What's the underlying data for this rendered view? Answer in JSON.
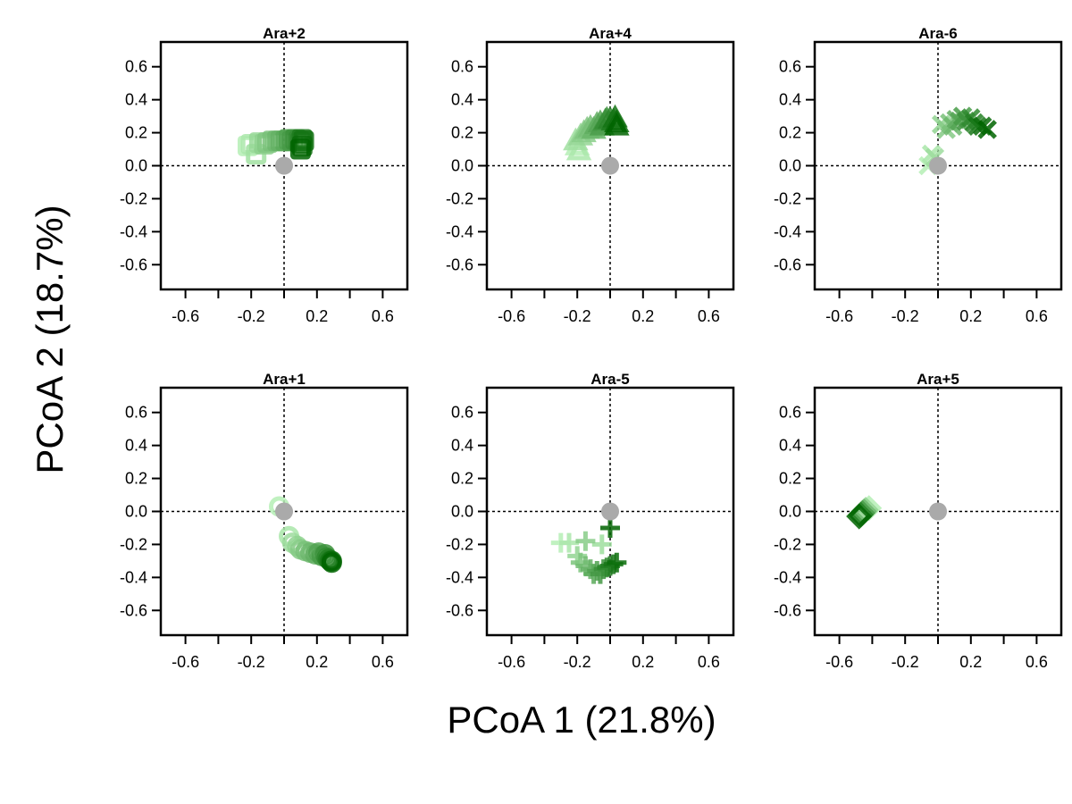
{
  "figure": {
    "xlabel": "PCoA 1 (21.8%)",
    "ylabel": "PCoA 2 (18.7%)",
    "origin_color": "#aaaaaa",
    "color_light": "#b5efb5",
    "color_dark": "#006400"
  },
  "chart_data": [
    {
      "type": "scatter",
      "title": "Ara+2",
      "marker": "square",
      "xlim": [
        -0.75,
        0.75
      ],
      "ylim": [
        -0.75,
        0.75
      ],
      "xticks": [
        -0.6,
        -0.4,
        -0.2,
        0,
        0.2,
        0.4,
        0.6
      ],
      "xtick_labels": [
        "-0.6",
        "-0.2",
        "0.2",
        "0.6"
      ],
      "yticks": [
        -0.6,
        -0.4,
        -0.2,
        0.0,
        0.2,
        0.4,
        0.6
      ],
      "ytick_labels": [
        "-0.6",
        "-0.4",
        "-0.2",
        "0.0",
        "0.2",
        "0.4",
        "0.6"
      ],
      "reference_lines": {
        "x": 0,
        "y": 0
      },
      "origin_point": [
        0,
        0
      ],
      "points": [
        [
          -0.22,
          0.12
        ],
        [
          -0.2,
          0.13
        ],
        [
          -0.17,
          0.07
        ],
        [
          -0.15,
          0.14
        ],
        [
          -0.12,
          0.13
        ],
        [
          -0.1,
          0.14
        ],
        [
          -0.07,
          0.15
        ],
        [
          -0.04,
          0.15
        ],
        [
          -0.02,
          0.15
        ],
        [
          0.01,
          0.15
        ],
        [
          0.03,
          0.16
        ],
        [
          0.05,
          0.15
        ],
        [
          0.07,
          0.16
        ],
        [
          0.09,
          0.15
        ],
        [
          0.1,
          0.14
        ],
        [
          0.11,
          0.16
        ],
        [
          0.12,
          0.15
        ],
        [
          0.11,
          0.12
        ],
        [
          0.1,
          0.1
        ]
      ]
    },
    {
      "type": "scatter",
      "title": "Ara+4",
      "marker": "triangle",
      "xlim": [
        -0.75,
        0.75
      ],
      "ylim": [
        -0.75,
        0.75
      ],
      "xticks": [
        -0.6,
        -0.4,
        -0.2,
        0,
        0.2,
        0.4,
        0.6
      ],
      "xtick_labels": [
        "-0.6",
        "-0.2",
        "0.2",
        "0.6"
      ],
      "yticks": [
        -0.6,
        -0.4,
        -0.2,
        0.0,
        0.2,
        0.4,
        0.6
      ],
      "ytick_labels": [
        "-0.6",
        "-0.4",
        "-0.2",
        "0.0",
        "0.2",
        "0.4",
        "0.6"
      ],
      "reference_lines": {
        "x": 0,
        "y": 0
      },
      "origin_point": [
        0,
        0
      ],
      "points": [
        [
          -0.2,
          0.12
        ],
        [
          -0.19,
          0.09
        ],
        [
          -0.21,
          0.15
        ],
        [
          -0.18,
          0.18
        ],
        [
          -0.16,
          0.2
        ],
        [
          -0.14,
          0.22
        ],
        [
          -0.12,
          0.23
        ],
        [
          -0.1,
          0.22
        ],
        [
          -0.08,
          0.25
        ],
        [
          -0.06,
          0.26
        ],
        [
          -0.05,
          0.24
        ],
        [
          -0.03,
          0.27
        ],
        [
          -0.02,
          0.28
        ],
        [
          0.0,
          0.28
        ],
        [
          0.02,
          0.27
        ],
        [
          0.03,
          0.29
        ],
        [
          0.04,
          0.26
        ],
        [
          0.04,
          0.24
        ]
      ]
    },
    {
      "type": "scatter",
      "title": "Ara-6",
      "marker": "x",
      "xlim": [
        -0.75,
        0.75
      ],
      "ylim": [
        -0.75,
        0.75
      ],
      "xticks": [
        -0.6,
        -0.4,
        -0.2,
        0,
        0.2,
        0.4,
        0.6
      ],
      "xtick_labels": [
        "-0.6",
        "-0.2",
        "0.2",
        "0.6"
      ],
      "yticks": [
        -0.6,
        -0.4,
        -0.2,
        0.0,
        0.2,
        0.4,
        0.6
      ],
      "ytick_labels": [
        "-0.6",
        "-0.4",
        "-0.2",
        "0.0",
        "0.2",
        "0.4",
        "0.6"
      ],
      "reference_lines": {
        "x": 0,
        "y": 0
      },
      "origin_point": [
        0,
        0
      ],
      "points": [
        [
          -0.06,
          0.0
        ],
        [
          -0.04,
          0.07
        ],
        [
          -0.02,
          0.05
        ],
        [
          0.02,
          0.25
        ],
        [
          0.05,
          0.22
        ],
        [
          0.07,
          0.26
        ],
        [
          0.09,
          0.24
        ],
        [
          0.11,
          0.28
        ],
        [
          0.13,
          0.27
        ],
        [
          0.15,
          0.3
        ],
        [
          0.17,
          0.27
        ],
        [
          0.2,
          0.29
        ],
        [
          0.22,
          0.26
        ],
        [
          0.24,
          0.24
        ],
        [
          0.27,
          0.24
        ],
        [
          0.3,
          0.22
        ]
      ]
    },
    {
      "type": "scatter",
      "title": "Ara+1",
      "marker": "circle",
      "xlim": [
        -0.75,
        0.75
      ],
      "ylim": [
        -0.75,
        0.75
      ],
      "xticks": [
        -0.6,
        -0.4,
        -0.2,
        0,
        0.2,
        0.4,
        0.6
      ],
      "xtick_labels": [
        "-0.6",
        "-0.2",
        "0.2",
        "0.6"
      ],
      "yticks": [
        -0.6,
        -0.4,
        -0.2,
        0.0,
        0.2,
        0.4,
        0.6
      ],
      "ytick_labels": [
        "-0.6",
        "-0.4",
        "-0.2",
        "0.0",
        "0.2",
        "0.4",
        "0.6"
      ],
      "reference_lines": {
        "x": 0,
        "y": 0
      },
      "origin_point": [
        0,
        0
      ],
      "points": [
        [
          -0.03,
          0.03
        ],
        [
          0.03,
          -0.15
        ],
        [
          0.05,
          -0.19
        ],
        [
          0.08,
          -0.21
        ],
        [
          0.1,
          -0.23
        ],
        [
          0.13,
          -0.24
        ],
        [
          0.16,
          -0.25
        ],
        [
          0.19,
          -0.26
        ],
        [
          0.21,
          -0.25
        ],
        [
          0.23,
          -0.27
        ],
        [
          0.25,
          -0.26
        ],
        [
          0.26,
          -0.28
        ],
        [
          0.27,
          -0.29
        ],
        [
          0.28,
          -0.3
        ],
        [
          0.29,
          -0.3
        ],
        [
          0.29,
          -0.31
        ]
      ]
    },
    {
      "type": "scatter",
      "title": "Ara-5",
      "marker": "plus",
      "xlim": [
        -0.75,
        0.75
      ],
      "ylim": [
        -0.75,
        0.75
      ],
      "xticks": [
        -0.6,
        -0.4,
        -0.2,
        0,
        0.2,
        0.4,
        0.6
      ],
      "xtick_labels": [
        "-0.6",
        "-0.2",
        "0.2",
        "0.6"
      ],
      "yticks": [
        -0.6,
        -0.4,
        -0.2,
        0.0,
        0.2,
        0.4,
        0.6
      ],
      "ytick_labels": [
        "-0.6",
        "-0.4",
        "-0.2",
        "0.0",
        "0.2",
        "0.4",
        "0.6"
      ],
      "reference_lines": {
        "x": 0,
        "y": 0
      },
      "origin_point": [
        0,
        0
      ],
      "points": [
        [
          -0.3,
          -0.19
        ],
        [
          -0.25,
          -0.19
        ],
        [
          -0.05,
          -0.2
        ],
        [
          -0.2,
          -0.27
        ],
        [
          -0.15,
          -0.18
        ],
        [
          -0.18,
          -0.31
        ],
        [
          -0.15,
          -0.33
        ],
        [
          -0.12,
          -0.35
        ],
        [
          -0.1,
          -0.38
        ],
        [
          -0.08,
          -0.36
        ],
        [
          -0.06,
          -0.38
        ],
        [
          -0.04,
          -0.35
        ],
        [
          -0.02,
          -0.34
        ],
        [
          0.0,
          -0.33
        ],
        [
          0.02,
          -0.32
        ],
        [
          0.04,
          -0.31
        ],
        [
          0.0,
          -0.1
        ]
      ]
    },
    {
      "type": "scatter",
      "title": "Ara+5",
      "marker": "diamond",
      "xlim": [
        -0.75,
        0.75
      ],
      "ylim": [
        -0.75,
        0.75
      ],
      "xticks": [
        -0.6,
        -0.4,
        -0.2,
        0,
        0.2,
        0.4,
        0.6
      ],
      "xtick_labels": [
        "-0.6",
        "-0.2",
        "0.2",
        "0.6"
      ],
      "yticks": [
        -0.6,
        -0.4,
        -0.2,
        0.0,
        0.2,
        0.4,
        0.6
      ],
      "ytick_labels": [
        "-0.6",
        "-0.4",
        "-0.2",
        "0.0",
        "0.2",
        "0.4",
        "0.6"
      ],
      "reference_lines": {
        "x": 0,
        "y": 0
      },
      "origin_point": [
        0,
        0
      ],
      "points": [
        [
          -0.42,
          0.02
        ],
        [
          -0.44,
          0.01
        ],
        [
          -0.45,
          0.0
        ],
        [
          -0.46,
          -0.01
        ],
        [
          -0.47,
          -0.02
        ],
        [
          -0.48,
          -0.03
        ]
      ]
    }
  ]
}
